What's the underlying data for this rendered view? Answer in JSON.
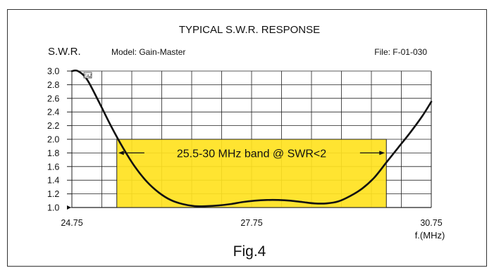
{
  "figure": {
    "title": "TYPICAL S.W.R. RESPONSE",
    "model": "Model:  Gain-Master",
    "file": "File:  F-01-030",
    "caption": "Fig.4",
    "logo_text": "EAZ"
  },
  "chart_data": {
    "type": "line",
    "title": "TYPICAL S.W.R. RESPONSE",
    "ylabel": "S.W.R.",
    "xlabel": "f.(MHz)",
    "xlim": [
      24.75,
      30.75
    ],
    "ylim": [
      1.0,
      3.0
    ],
    "x_ticks": [
      24.75,
      27.75,
      30.75
    ],
    "x_tick_labels": [
      "24.75",
      "27.75",
      "30.75"
    ],
    "y_ticks": [
      1.0,
      1.2,
      1.4,
      1.6,
      1.8,
      2.0,
      2.2,
      2.4,
      2.6,
      2.8,
      3.0
    ],
    "y_tick_labels": [
      "1.0",
      "1.2",
      "1.4",
      "1.6",
      "1.8",
      "2.0",
      "2.2",
      "2.4",
      "2.6",
      "2.8",
      "3.0"
    ],
    "grid": true,
    "highlight": {
      "label": "25.5-30 MHz band @ SWR<2",
      "x_range": [
        25.5,
        30.0
      ],
      "y_range": [
        1.0,
        2.0
      ],
      "color": "#ffe21f"
    },
    "series": [
      {
        "color": "#111111",
        "x": [
          24.75,
          24.85,
          25.0,
          25.2,
          25.4,
          25.6,
          25.8,
          26.0,
          26.2,
          26.4,
          26.6,
          26.8,
          27.0,
          27.2,
          27.4,
          27.6,
          27.8,
          28.0,
          28.2,
          28.4,
          28.6,
          28.8,
          29.0,
          29.2,
          29.4,
          29.6,
          29.8,
          30.0,
          30.2,
          30.4,
          30.6,
          30.75
        ],
        "y": [
          3.0,
          3.0,
          2.88,
          2.55,
          2.2,
          1.88,
          1.6,
          1.38,
          1.22,
          1.11,
          1.05,
          1.02,
          1.02,
          1.03,
          1.05,
          1.08,
          1.1,
          1.11,
          1.11,
          1.1,
          1.08,
          1.06,
          1.06,
          1.09,
          1.17,
          1.28,
          1.44,
          1.66,
          1.88,
          2.1,
          2.34,
          2.55
        ]
      }
    ]
  }
}
